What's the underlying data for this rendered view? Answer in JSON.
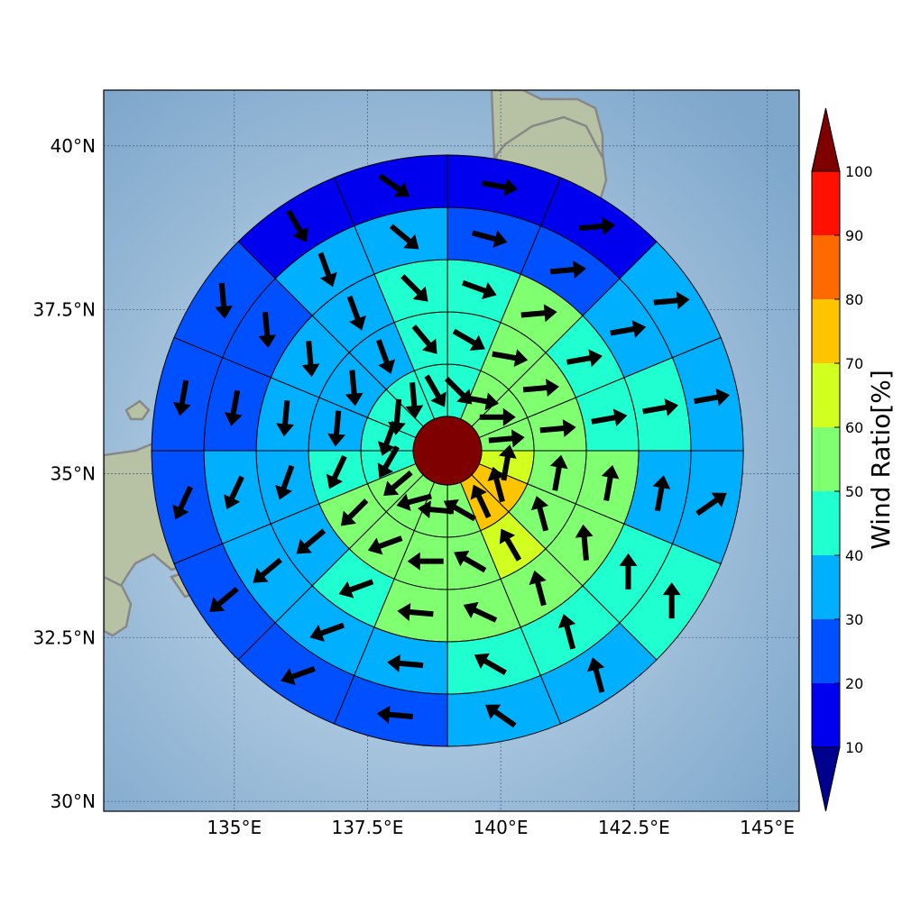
{
  "chart_data": {
    "type": "polar-grid-map",
    "colorbar": {
      "label": "Wind Ratio[%]",
      "ticks": [
        10,
        20,
        30,
        40,
        50,
        60,
        70,
        80,
        90,
        100
      ],
      "extend": "both",
      "colors": {
        "under": "#00008f",
        "0_10": "#00008f",
        "10_20": "#0000ef",
        "20_30": "#0050ff",
        "30_40": "#00b0ff",
        "40_50": "#20ffd0",
        "50_60": "#80ff70",
        "60_70": "#d0ff20",
        "70_80": "#ffc400",
        "80_90": "#ff6a00",
        "90_100": "#ff1000",
        "over": "#7f0000"
      }
    },
    "x_ticks": [
      "135°E",
      "137.5°E",
      "140°E",
      "142.5°E",
      "145°E"
    ],
    "y_ticks": [
      "40°N",
      "37.5°N",
      "35°N",
      "32.5°N",
      "30°N"
    ],
    "lon_range": [
      132.55,
      145.6
    ],
    "lat_range": [
      29.85,
      40.85
    ],
    "center": {
      "lon": 139.0,
      "lat": 35.35,
      "value": 100
    },
    "rings": 5,
    "sectors": 16,
    "cells": [
      [
        52,
        54,
        57,
        47,
        42,
        42,
        43,
        45,
        48,
        54,
        57,
        55,
        52,
        72,
        72,
        62
      ],
      [
        52,
        52,
        54,
        48,
        43,
        37,
        34,
        33,
        43,
        53,
        55,
        58,
        58,
        67,
        57,
        52
      ],
      [
        43,
        43,
        53,
        47,
        42,
        34,
        33,
        31,
        38,
        36,
        48,
        55,
        52,
        54,
        55,
        53
      ],
      [
        43,
        36,
        26,
        25,
        32,
        36,
        27,
        28,
        36,
        32,
        37,
        33,
        43,
        44,
        43,
        38
      ],
      [
        33,
        32,
        14,
        12,
        13,
        17,
        25,
        27,
        26,
        22,
        22,
        24,
        33,
        33,
        44,
        34
      ]
    ],
    "wind_arrows_deg": [
      [
        85,
        90,
        100,
        135,
        150,
        175,
        185,
        200,
        210,
        230,
        255,
        275,
        300,
        335,
        345,
        10
      ],
      [
        85,
        85,
        100,
        120,
        140,
        160,
        175,
        185,
        205,
        225,
        250,
        270,
        300,
        330,
        345,
        10
      ],
      [
        80,
        80,
        85,
        110,
        135,
        160,
        175,
        185,
        200,
        230,
        250,
        275,
        295,
        345,
        355,
        10
      ],
      [
        80,
        80,
        85,
        105,
        130,
        160,
        175,
        190,
        205,
        230,
        250,
        275,
        300,
        345,
        0,
        10
      ],
      [
        80,
        85,
        85,
        100,
        125,
        150,
        175,
        190,
        205,
        230,
        250,
        275,
        305,
        345,
        0,
        55
      ]
    ]
  }
}
